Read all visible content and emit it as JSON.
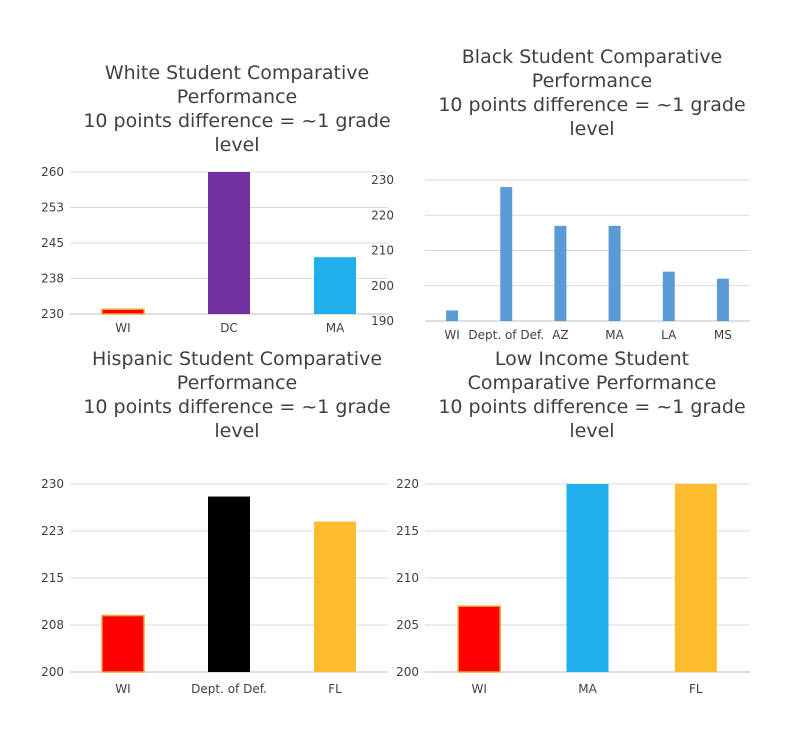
{
  "chart_data": [
    {
      "type": "bar",
      "title": [
        "White Student Comparative",
        "Performance",
        "10 points difference = ~1 grade",
        "level"
      ],
      "categories": [
        "WI",
        "DC",
        "MA"
      ],
      "values": [
        231,
        260,
        242
      ],
      "colors": [
        "#ff0000",
        "#7030a0",
        "#1fb0eb"
      ],
      "yticks": [
        "230",
        "238",
        "245",
        "253",
        "260"
      ],
      "ylim": [
        230,
        260
      ],
      "grid": true
    },
    {
      "type": "bar",
      "title": [
        "Black Student Comparative",
        "Performance",
        "10 points difference = ~1 grade",
        "level"
      ],
      "categories": [
        "WI",
        "Dept. of Def.",
        "AZ",
        "MA",
        "LA",
        "MS"
      ],
      "values": [
        193,
        228,
        217,
        217,
        204,
        202
      ],
      "colors": [
        "#5b9bd5",
        "#5b9bd5",
        "#5b9bd5",
        "#5b9bd5",
        "#5b9bd5",
        "#5b9bd5"
      ],
      "yticks": [
        "190",
        "200",
        "210",
        "220",
        "230"
      ],
      "ylim": [
        190,
        230
      ],
      "grid": true
    },
    {
      "type": "bar",
      "title": [
        "Hispanic Student Comparative",
        "Performance",
        "10 points difference = ~1 grade",
        "level"
      ],
      "categories": [
        "WI",
        "Dept. of Def.",
        "FL"
      ],
      "values": [
        209,
        228,
        224
      ],
      "colors": [
        "#ff0000",
        "#000000",
        "#fcbc2c"
      ],
      "yticks": [
        "200",
        "208",
        "215",
        "223",
        "230"
      ],
      "ylim": [
        200,
        230
      ],
      "grid": true
    },
    {
      "type": "bar",
      "title": [
        "Low Income Student",
        "Comparative Performance",
        "10 points difference = ~1 grade",
        "level"
      ],
      "categories": [
        "WI",
        "MA",
        "FL"
      ],
      "values": [
        207,
        220,
        220
      ],
      "colors": [
        "#ff0000",
        "#1fb0eb",
        "#fcbc2c"
      ],
      "yticks": [
        "200",
        "205",
        "210",
        "215",
        "220"
      ],
      "ylim": [
        200,
        220
      ],
      "grid": true
    }
  ]
}
